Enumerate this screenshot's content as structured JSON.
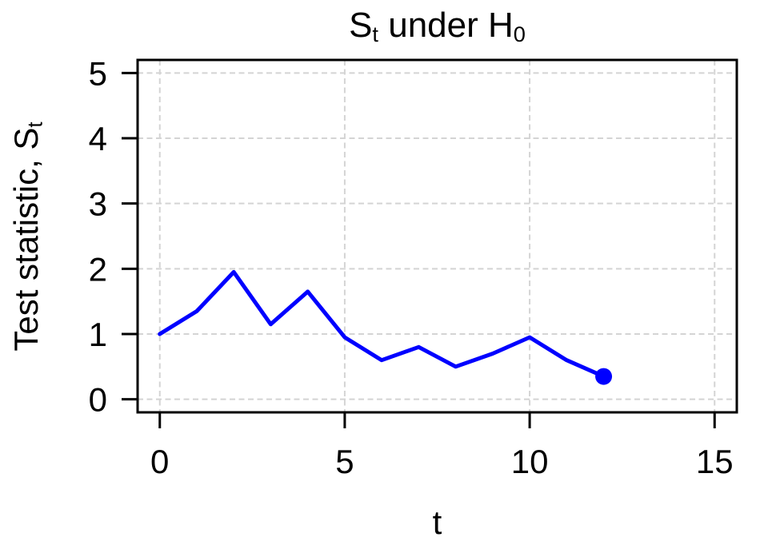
{
  "chart_data": {
    "type": "line",
    "title": "S_t under H_0",
    "xlabel": "t",
    "ylabel": "Test statistic, S_t",
    "x": [
      0,
      1,
      2,
      3,
      4,
      5,
      6,
      7,
      8,
      9,
      10,
      11,
      12
    ],
    "y": [
      1.0,
      1.35,
      1.95,
      1.15,
      1.65,
      0.95,
      0.6,
      0.8,
      0.5,
      0.7,
      0.95,
      0.6,
      0.35
    ],
    "xticks": [
      0,
      5,
      10,
      15
    ],
    "yticks": [
      0,
      1,
      2,
      3,
      4,
      5
    ],
    "xtick_labels": [
      "0",
      "5",
      "10",
      "15"
    ],
    "ytick_labels": [
      "0",
      "1",
      "2",
      "3",
      "4",
      "5"
    ],
    "xlim": [
      -0.6,
      15.6
    ],
    "ylim": [
      -0.2,
      5.2
    ],
    "grid": true,
    "grid_style": "dashed",
    "legend": "none",
    "line_color": "#0000FF",
    "end_marker": {
      "x": 12,
      "y": 0.35,
      "shape": "filled-circle",
      "color": "#0000FF"
    },
    "grid_color": "#D4D4D4",
    "axis_color": "#000000",
    "background_color": "#FFFFFF"
  },
  "labels": {
    "title": {
      "base": "S",
      "base_sub": "t",
      "rest": " under H",
      "rest_sub": "0"
    },
    "xlabel": "t",
    "ylabel": {
      "text": "Test statistic, S",
      "sub": "t"
    }
  }
}
